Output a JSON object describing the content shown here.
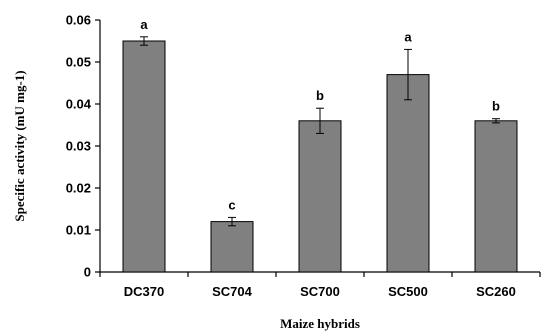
{
  "chart_data": {
    "type": "bar",
    "title": "",
    "xlabel": "Maize hybrids",
    "ylabel": "Specific activity (mU mg-1)",
    "categories": [
      "DC370",
      "SC704",
      "SC700",
      "SC500",
      "SC260"
    ],
    "values": [
      0.055,
      0.012,
      0.036,
      0.047,
      0.036
    ],
    "errors": [
      0.001,
      0.001,
      0.003,
      0.006,
      0.0005
    ],
    "significance_letters": [
      "a",
      "c",
      "b",
      "a",
      "b"
    ],
    "ylim": [
      0,
      0.06
    ],
    "yticks": [
      "0",
      "0.01",
      "0.02",
      "0.03",
      "0.04",
      "0.05",
      "0.06"
    ],
    "grid": false,
    "legend": "none",
    "bar_color": "#808080",
    "bar_edge_color": "#000000"
  }
}
